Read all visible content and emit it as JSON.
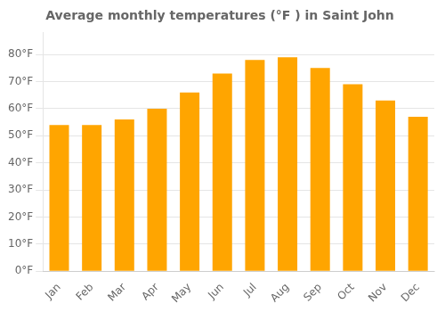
{
  "chart_data": {
    "type": "bar",
    "title": "Average monthly temperatures (°F ) in Saint John",
    "categories": [
      "Jan",
      "Feb",
      "Mar",
      "Apr",
      "May",
      "Jun",
      "Jul",
      "Aug",
      "Sep",
      "Oct",
      "Nov",
      "Dec"
    ],
    "values": [
      54,
      54,
      56,
      60,
      66,
      73,
      78,
      79,
      75,
      69,
      63,
      57
    ],
    "color": "#FFA500",
    "ylim": [
      0,
      88
    ],
    "yticks": [
      {
        "value": 0,
        "label": "0°F"
      },
      {
        "value": 10,
        "label": "10°F"
      },
      {
        "value": 20,
        "label": "20°F"
      },
      {
        "value": 30,
        "label": "30°F"
      },
      {
        "value": 40,
        "label": "40°F"
      },
      {
        "value": 50,
        "label": "50°F"
      },
      {
        "value": 60,
        "label": "60°F"
      },
      {
        "value": 70,
        "label": "70°F"
      },
      {
        "value": 80,
        "label": "80°F"
      }
    ],
    "grid": true
  }
}
